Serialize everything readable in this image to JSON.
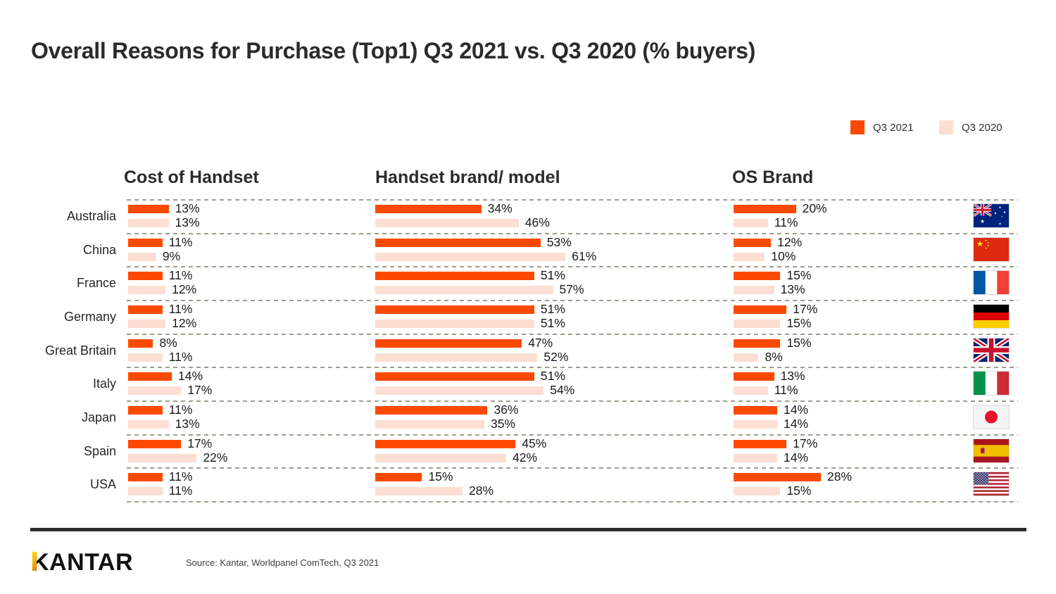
{
  "title": "Overall Reasons for Purchase (Top1) Q3 2021 vs. Q3 2020 (% buyers)",
  "legend": {
    "items": [
      {
        "label": "Q3 2021",
        "color": "#FB4A00"
      },
      {
        "label": "Q3 2020",
        "color": "#FCDFD2"
      }
    ]
  },
  "columns": {
    "cost": "Cost of Handset",
    "brand": "Handset brand/ model",
    "os": "OS Brand"
  },
  "chart_data": {
    "type": "bar",
    "orientation": "horizontal",
    "unit": "% buyers",
    "series_names": [
      "Q3 2021",
      "Q3 2020"
    ],
    "groups": [
      "Cost of Handset",
      "Handset brand/ model",
      "OS Brand"
    ],
    "xlim": [
      0,
      65
    ],
    "grid": "dashed-row-separators",
    "legend_position": "top-right",
    "rows": [
      {
        "country": "Australia",
        "flag": "australia",
        "cost": [
          13,
          13
        ],
        "brand": [
          34,
          46
        ],
        "os": [
          20,
          11
        ]
      },
      {
        "country": "China",
        "flag": "china",
        "cost": [
          11,
          9
        ],
        "brand": [
          53,
          61
        ],
        "os": [
          12,
          10
        ]
      },
      {
        "country": "France",
        "flag": "france",
        "cost": [
          11,
          12
        ],
        "brand": [
          51,
          57
        ],
        "os": [
          15,
          13
        ]
      },
      {
        "country": "Germany",
        "flag": "germany",
        "cost": [
          11,
          12
        ],
        "brand": [
          51,
          51
        ],
        "os": [
          17,
          15
        ]
      },
      {
        "country": "Great Britain",
        "flag": "great-britain",
        "cost": [
          8,
          11
        ],
        "brand": [
          47,
          52
        ],
        "os": [
          15,
          8
        ]
      },
      {
        "country": "Italy",
        "flag": "italy",
        "cost": [
          14,
          17
        ],
        "brand": [
          51,
          54
        ],
        "os": [
          13,
          11
        ]
      },
      {
        "country": "Japan",
        "flag": "japan",
        "cost": [
          11,
          13
        ],
        "brand": [
          36,
          35
        ],
        "os": [
          14,
          14
        ]
      },
      {
        "country": "Spain",
        "flag": "spain",
        "cost": [
          17,
          22
        ],
        "brand": [
          45,
          42
        ],
        "os": [
          17,
          14
        ]
      },
      {
        "country": "USA",
        "flag": "usa",
        "cost": [
          11,
          11
        ],
        "brand": [
          15,
          28
        ],
        "os": [
          28,
          15
        ]
      }
    ]
  },
  "footer": {
    "logo": "KANTAR",
    "source": "Source: Kantar, Worldpanel ComTech, Q3 2021"
  }
}
